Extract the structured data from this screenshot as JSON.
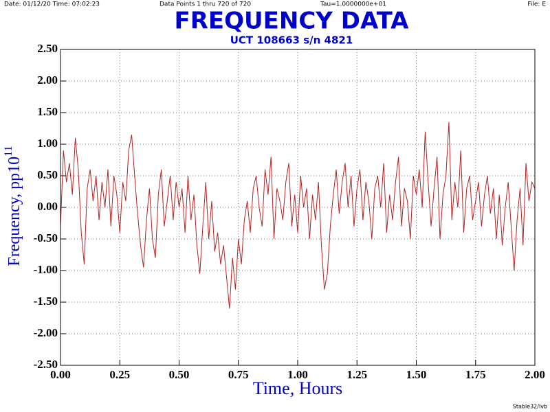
{
  "chart_data": {
    "type": "line",
    "title": "FREQUENCY DATA",
    "subtitle": "UCT 108663 s/n 4821",
    "header": {
      "date": "Date: 01/12/20  Time: 07:02:23",
      "points": "Data Points 1 thru 720 of 720",
      "tau": "Tau=1.0000000e+01",
      "file": "File: E"
    },
    "footer": "Stable32/lvb",
    "xlabel": "Time,  Hours",
    "ylabel": "Frequency,  pp10",
    "ylabel_exponent": "11",
    "xlim": [
      0,
      2
    ],
    "ylim": [
      -2.5,
      2.5
    ],
    "xticks": [
      {
        "value": 0,
        "label": "0.00"
      },
      {
        "value": 0.25,
        "label": "0.25"
      },
      {
        "value": 0.5,
        "label": "0.50"
      },
      {
        "value": 0.75,
        "label": "0.75"
      },
      {
        "value": 1,
        "label": "1.00"
      },
      {
        "value": 1.25,
        "label": "1.25"
      },
      {
        "value": 1.5,
        "label": "1.50"
      },
      {
        "value": 1.75,
        "label": "1.75"
      },
      {
        "value": 2,
        "label": "2.00"
      }
    ],
    "yticks": [
      {
        "value": 2.5,
        "label": "2.50"
      },
      {
        "value": 2,
        "label": "2.00"
      },
      {
        "value": 1.5,
        "label": "1.50"
      },
      {
        "value": 1,
        "label": "1.00"
      },
      {
        "value": 0.5,
        "label": "0.50"
      },
      {
        "value": 0,
        "label": "0.00"
      },
      {
        "value": -0.5,
        "label": "-0.50"
      },
      {
        "value": -1,
        "label": "-1.00"
      },
      {
        "value": -1.5,
        "label": "-1.50"
      },
      {
        "value": -2,
        "label": "-2.00"
      },
      {
        "value": -2.5,
        "label": "-2.50"
      }
    ],
    "grid": true,
    "x": [
      0,
      0.0125,
      0.025,
      0.0375,
      0.05,
      0.0625,
      0.075,
      0.0875,
      0.1,
      0.1125,
      0.125,
      0.1375,
      0.15,
      0.1625,
      0.175,
      0.1875,
      0.2,
      0.2125,
      0.225,
      0.2375,
      0.25,
      0.2625,
      0.275,
      0.2875,
      0.3,
      0.3125,
      0.325,
      0.3375,
      0.35,
      0.3625,
      0.375,
      0.3875,
      0.4,
      0.4125,
      0.425,
      0.4375,
      0.45,
      0.4625,
      0.475,
      0.4875,
      0.5,
      0.5125,
      0.525,
      0.5375,
      0.55,
      0.5625,
      0.575,
      0.5875,
      0.6,
      0.6125,
      0.625,
      0.6375,
      0.65,
      0.6625,
      0.675,
      0.6875,
      0.7,
      0.7125,
      0.725,
      0.7375,
      0.75,
      0.7625,
      0.775,
      0.7875,
      0.8,
      0.8125,
      0.825,
      0.8375,
      0.85,
      0.8625,
      0.875,
      0.8875,
      0.9,
      0.9125,
      0.925,
      0.9375,
      0.95,
      0.9625,
      0.975,
      0.9875,
      1,
      1.0125,
      1.025,
      1.0375,
      1.05,
      1.0625,
      1.075,
      1.0875,
      1.1,
      1.1125,
      1.125,
      1.1375,
      1.15,
      1.1625,
      1.175,
      1.1875,
      1.2,
      1.2125,
      1.225,
      1.2375,
      1.25,
      1.2625,
      1.275,
      1.2875,
      1.3,
      1.3125,
      1.325,
      1.3375,
      1.35,
      1.3625,
      1.375,
      1.3875,
      1.4,
      1.4125,
      1.425,
      1.4375,
      1.45,
      1.4625,
      1.475,
      1.4875,
      1.5,
      1.5125,
      1.525,
      1.5375,
      1.55,
      1.5625,
      1.575,
      1.5875,
      1.6,
      1.6125,
      1.625,
      1.6375,
      1.65,
      1.6625,
      1.675,
      1.6875,
      1.7,
      1.7125,
      1.725,
      1.7375,
      1.75,
      1.7625,
      1.775,
      1.7875,
      1.8,
      1.8125,
      1.825,
      1.8375,
      1.85,
      1.8625,
      1.875,
      1.8875,
      1.9,
      1.9125,
      1.925,
      1.9375,
      1.95,
      1.9625,
      1.975,
      1.9875,
      2
    ],
    "series": [
      {
        "name": "Frequency",
        "color": "#b22222",
        "values": [
          -0.3,
          0.9,
          0.4,
          0.7,
          0.2,
          1.1,
          0.6,
          -0.4,
          -0.9,
          0.3,
          0.6,
          0.1,
          0.5,
          -0.2,
          0.4,
          0,
          0.6,
          -0.3,
          0.5,
          0.2,
          -0.4,
          0.4,
          0.1,
          0.9,
          1.15,
          0.5,
          -0.1,
          -0.6,
          -0.95,
          -0.2,
          0.3,
          -0.5,
          -0.8,
          0.2,
          0.6,
          -0.3,
          0.1,
          0.5,
          -0.2,
          0.4,
          0,
          0.3,
          -0.4,
          0.5,
          -0.2,
          0.2,
          -0.6,
          -1.05,
          -0.3,
          0.4,
          -0.5,
          0.1,
          -0.7,
          -0.4,
          -0.9,
          -0.6,
          -1.1,
          -1.6,
          -0.8,
          -1.3,
          -0.5,
          -0.9,
          -0.2,
          0.1,
          -0.4,
          0.3,
          0.5,
          0,
          -0.3,
          0.6,
          0.2,
          0.8,
          -0.5,
          0.3,
          0.1,
          -0.2,
          0.4,
          0.7,
          -0.3,
          0.2,
          -0.4,
          0.5,
          0,
          0.3,
          -0.5,
          0.2,
          -0.2,
          0.4,
          -0.6,
          -1.3,
          -1.05,
          -0.3,
          0.2,
          0.6,
          -0.1,
          0.4,
          0.7,
          0,
          0.5,
          -0.3,
          0.3,
          0.6,
          -0.2,
          0.4,
          0.1,
          -0.5,
          0.3,
          0.5,
          0,
          0.7,
          -0.4,
          0.2,
          -0.2,
          0.4,
          0.8,
          -0.3,
          0.3,
          0.1,
          -0.5,
          0.5,
          0.2,
          0.6,
          0,
          1.2,
          0.4,
          -0.3,
          0.3,
          0.8,
          -0.5,
          0.2,
          0.5,
          1.35,
          -0.2,
          0.4,
          0,
          0.9,
          -0.4,
          0.3,
          0.5,
          -0.2,
          0.1,
          0.4,
          -0.3,
          0.2,
          0.5,
          -0.1,
          0.3,
          -0.5,
          0.2,
          -0.6,
          0,
          0.4,
          -0.3,
          -1,
          -0.2,
          0.3,
          -0.6,
          0.7,
          0.1,
          0.4,
          0.3
        ]
      }
    ]
  }
}
